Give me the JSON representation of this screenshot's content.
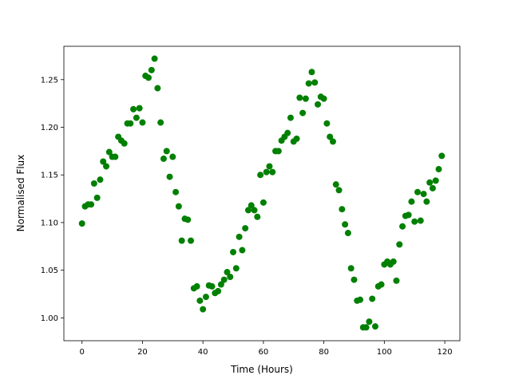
{
  "chart_data": {
    "type": "scatter",
    "x_label": "Time (Hours)",
    "y_label": "Normalised Flux",
    "color": "#008000",
    "x": [
      0,
      1,
      2,
      3,
      4,
      5,
      6,
      7,
      8,
      9,
      10,
      11,
      12,
      13,
      14,
      15,
      16,
      17,
      18,
      19,
      20,
      21,
      22,
      23,
      24,
      25,
      26,
      27,
      28,
      29,
      30,
      31,
      32,
      33,
      34,
      35,
      36,
      37,
      38,
      39,
      40,
      41,
      42,
      43,
      44,
      45,
      46,
      47,
      48,
      49,
      50,
      51,
      52,
      53,
      54,
      55,
      56,
      57,
      58,
      59,
      60,
      61,
      62,
      63,
      64,
      65,
      66,
      67,
      68,
      69,
      70,
      71,
      72,
      73,
      74,
      75,
      76,
      77,
      78,
      79,
      80,
      81,
      82,
      83,
      84,
      85,
      86,
      87,
      88,
      89,
      90,
      91,
      92,
      93,
      94,
      95,
      96,
      97,
      98,
      99,
      100,
      101,
      102,
      103,
      104,
      105,
      106,
      107,
      108,
      109,
      110,
      111,
      112,
      113,
      114,
      115,
      116,
      117,
      118,
      119
    ],
    "values": [
      1.099,
      1.117,
      1.119,
      1.119,
      1.141,
      1.126,
      1.145,
      1.164,
      1.159,
      1.174,
      1.169,
      1.169,
      1.19,
      1.186,
      1.183,
      1.204,
      1.204,
      1.219,
      1.21,
      1.22,
      1.205,
      1.254,
      1.252,
      1.26,
      1.272,
      1.241,
      1.205,
      1.167,
      1.175,
      1.148,
      1.169,
      1.132,
      1.117,
      1.081,
      1.104,
      1.103,
      1.081,
      1.031,
      1.033,
      1.018,
      1.009,
      1.022,
      1.034,
      1.033,
      1.026,
      1.028,
      1.035,
      1.04,
      1.048,
      1.043,
      1.069,
      1.052,
      1.085,
      1.071,
      1.094,
      1.113,
      1.118,
      1.113,
      1.106,
      1.15,
      1.121,
      1.153,
      1.159,
      1.153,
      1.175,
      1.175,
      1.186,
      1.19,
      1.194,
      1.21,
      1.185,
      1.188,
      1.231,
      1.215,
      1.23,
      1.246,
      1.258,
      1.247,
      1.224,
      1.232,
      1.23,
      1.204,
      1.19,
      1.185,
      1.14,
      1.134,
      1.114,
      1.098,
      1.089,
      1.052,
      1.04,
      1.018,
      1.019,
      0.99,
      0.99,
      0.996,
      1.02,
      0.991,
      1.033,
      1.035,
      1.056,
      1.059,
      1.056,
      1.059,
      1.039,
      1.077,
      1.096,
      1.107,
      1.108,
      1.122,
      1.101,
      1.132,
      1.102,
      1.13,
      1.122,
      1.142,
      1.136,
      1.144,
      1.156,
      1.17
    ],
    "xlim": [
      -6,
      125
    ],
    "xticks": [
      0,
      20,
      40,
      60,
      80,
      100,
      120
    ],
    "ylim": [
      0.976,
      1.285
    ],
    "yticks": [
      {
        "value": 1.0,
        "label": "1.00"
      },
      1.05,
      {
        "value": 1.1,
        "label": "1.10"
      },
      1.15,
      {
        "value": 1.2,
        "label": "1.20"
      },
      1.25
    ]
  }
}
